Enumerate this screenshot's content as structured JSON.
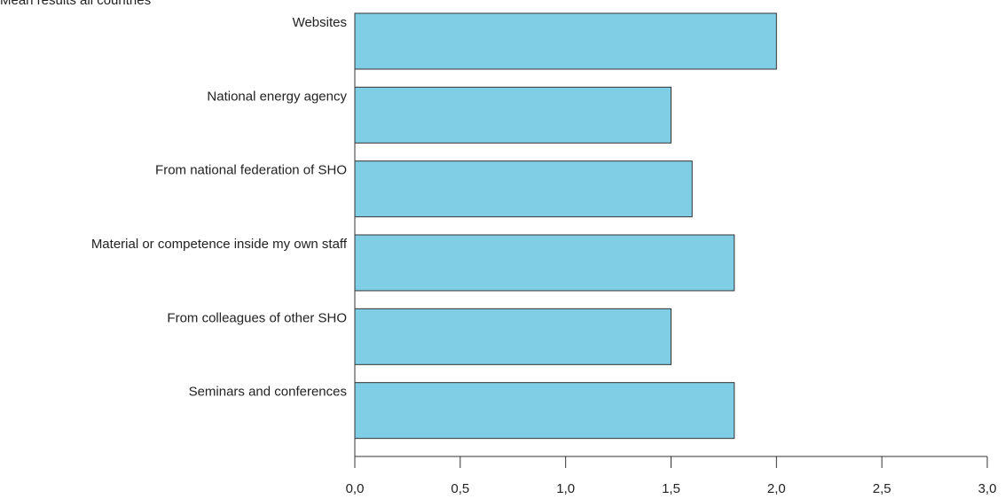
{
  "chart_data": {
    "type": "barh",
    "title": "Mean results all countries",
    "categories": [
      "Websites",
      "National energy agency",
      "From national federation of  SHO",
      "Material or competence inside my own staff",
      "From colleagues of other SHO",
      "Seminars and conferences"
    ],
    "values": [
      2.0,
      1.5,
      1.6,
      1.8,
      1.5,
      1.8
    ],
    "color": "#80cde6",
    "xlim": [
      0,
      3
    ],
    "xticks": [
      {
        "value": 0,
        "label": "0,0"
      },
      {
        "value": 0.5,
        "label": "0,5"
      },
      {
        "value": 1,
        "label": "1,0"
      },
      {
        "value": 1.5,
        "label": "1,5"
      },
      {
        "value": 2,
        "label": "2,0"
      },
      {
        "value": 2.5,
        "label": "2,5"
      },
      {
        "value": 3,
        "label": "3,0"
      }
    ],
    "grid": false
  }
}
